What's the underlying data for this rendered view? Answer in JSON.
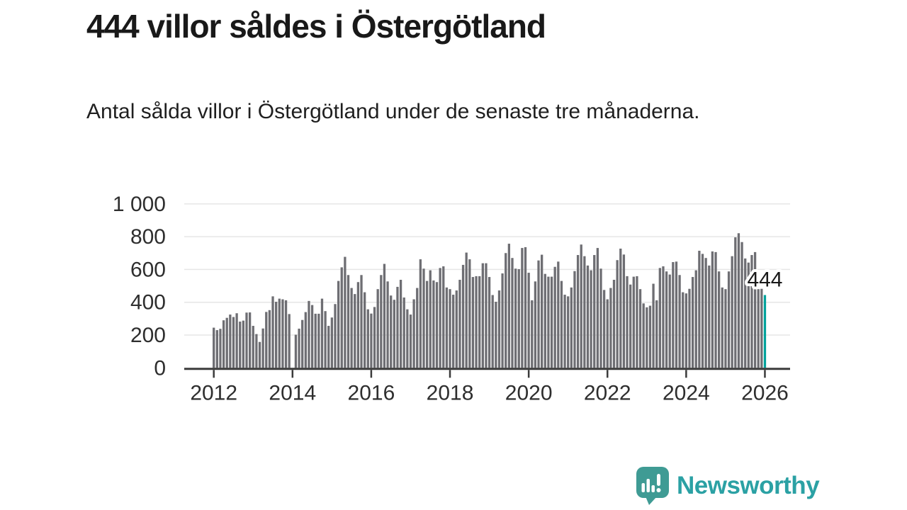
{
  "header": {
    "title": "444 villor såldes i Östergötland",
    "subtitle": "Antal sålda villor i Östergötland under de senaste tre månaderna."
  },
  "chart_data": {
    "type": "bar",
    "title": "444 villor såldes i Östergötland",
    "xlabel": "",
    "ylabel": "",
    "x_start": "2012-01",
    "x_frequency": "monthly",
    "x_tick_labels": [
      "2012",
      "2014",
      "2016",
      "2018",
      "2020",
      "2022",
      "2024",
      "2026"
    ],
    "yticks": [
      0,
      200,
      400,
      600,
      800,
      1000
    ],
    "ytick_labels": [
      "0",
      "200",
      "400",
      "600",
      "800",
      "1 000"
    ],
    "ylim": [
      0,
      1000
    ],
    "grid": "horizontal",
    "bar_color": "#6e6e73",
    "highlight_color": "#00a29b",
    "grid_color": "#e6e6e6",
    "axis_color": "#3b3b3b",
    "highlight_index": 168,
    "annotation": {
      "label": "444",
      "index": 168,
      "value": 444
    },
    "series": [
      {
        "name": "Antal sålda villor",
        "values": [
          245,
          230,
          238,
          290,
          305,
          325,
          310,
          333,
          282,
          288,
          337,
          338,
          256,
          206,
          158,
          240,
          341,
          352,
          436,
          403,
          422,
          418,
          412,
          328,
          null,
          202,
          239,
          292,
          340,
          408,
          383,
          330,
          330,
          422,
          346,
          256,
          307,
          389,
          530,
          613,
          677,
          566,
          487,
          450,
          523,
          566,
          461,
          357,
          331,
          371,
          480,
          566,
          634,
          527,
          441,
          415,
          494,
          537,
          429,
          357,
          325,
          418,
          487,
          662,
          605,
          530,
          595,
          533,
          523,
          609,
          619,
          490,
          480,
          446,
          472,
          537,
          628,
          703,
          662,
          554,
          559,
          559,
          638,
          638,
          554,
          444,
          403,
          472,
          576,
          700,
          757,
          670,
          605,
          602,
          731,
          736,
          580,
          412,
          527,
          655,
          690,
          573,
          556,
          556,
          616,
          648,
          530,
          446,
          436,
          490,
          590,
          688,
          752,
          681,
          624,
          595,
          688,
          731,
          605,
          475,
          418,
          487,
          537,
          657,
          727,
          691,
          559,
          508,
          556,
          559,
          480,
          393,
          369,
          379,
          513,
          412,
          609,
          619,
          588,
          569,
          645,
          648,
          566,
          461,
          454,
          482,
          554,
          595,
          714,
          695,
          670,
          624,
          710,
          706,
          588,
          490,
          480,
          588,
          681,
          796,
          821,
          767,
          667,
          642,
          688,
          706,
          480,
          482,
          444
        ]
      }
    ]
  },
  "footer": {
    "brand": "Newsworthy",
    "logo_icon": "newsworthy-speech-bubble-chart-icon",
    "logo_color": "#3f9b94",
    "brand_text_color": "#2ba1a4"
  }
}
